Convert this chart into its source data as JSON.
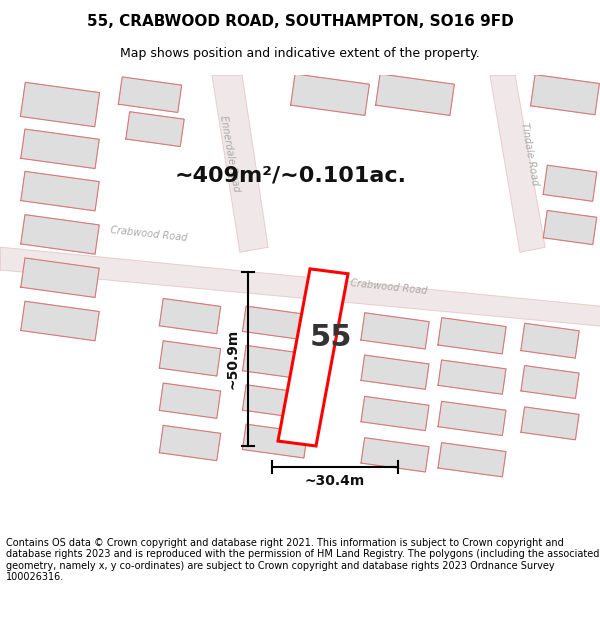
{
  "title": "55, CRABWOOD ROAD, SOUTHAMPTON, SO16 9FD",
  "subtitle": "Map shows position and indicative extent of the property.",
  "area_label": "~409m²/~0.101ac.",
  "width_label": "~30.4m",
  "height_label": "~50.9m",
  "number_label": "55",
  "footer": "Contains OS data © Crown copyright and database right 2021. This information is subject to Crown copyright and database rights 2023 and is reproduced with the permission of HM Land Registry. The polygons (including the associated geometry, namely x, y co-ordinates) are subject to Crown copyright and database rights 2023 Ordnance Survey 100026316.",
  "map_bg": "#f5f4f0",
  "road_fill": "#f0e8e8",
  "road_edge": "#e8c8c8",
  "building_fill": "#dedede",
  "building_edge": "#cccccc",
  "parcel_color": "#e07070",
  "plot_color": "#ff0000",
  "dim_color": "#000000",
  "title_fontsize": 11,
  "subtitle_fontsize": 9,
  "area_fontsize": 16,
  "number_fontsize": 22,
  "dim_fontsize": 10,
  "footer_fontsize": 7,
  "road_label_color": "#aaaaaa",
  "road_label_size": 7
}
